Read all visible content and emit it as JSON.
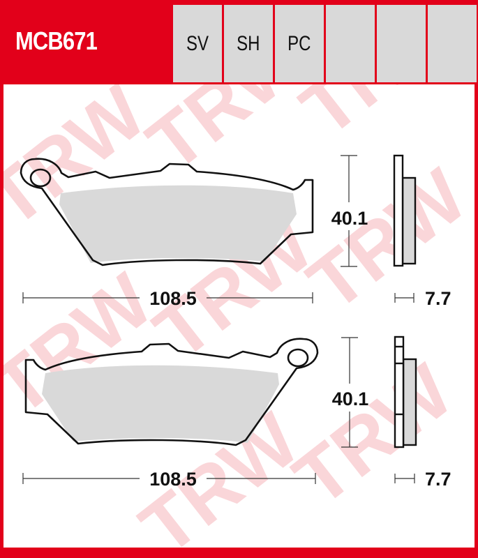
{
  "header": {
    "part_number": "MCB671",
    "compound_cells": [
      "SV",
      "SH",
      "PC",
      "",
      "",
      ""
    ]
  },
  "watermark": {
    "text": "TRW"
  },
  "colors": {
    "brand_red": "#e2001a",
    "cell_gray": "#d9d9d9",
    "friction_gray": "#d9d9d9",
    "watermark_pink": "#f8c8cc"
  },
  "drawings": [
    {
      "name": "pad-top",
      "height_label": "40.1",
      "width_label": "108.5",
      "thickness_label": "7.7"
    },
    {
      "name": "pad-bottom",
      "height_label": "40.1",
      "width_label": "108.5",
      "thickness_label": "7.7"
    }
  ]
}
